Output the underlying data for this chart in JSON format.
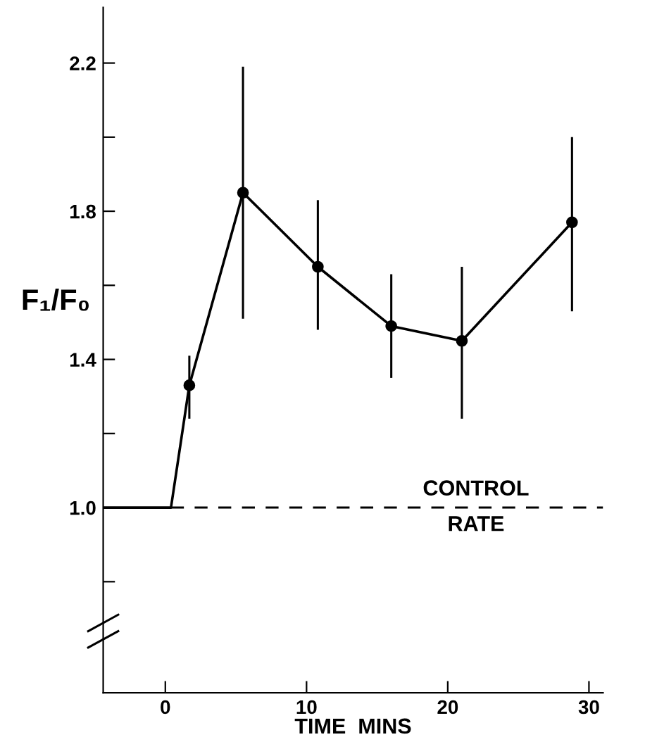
{
  "chart_data": {
    "type": "line",
    "xlabel": "TIME  MINS",
    "ylabel": "F₁/F₀",
    "xlim": [
      -4.4,
      31
    ],
    "ylim": [
      0.5,
      2.35
    ],
    "xticks": [
      0,
      10,
      20,
      30
    ],
    "yticks": [
      {
        "value": 0.8,
        "label": null
      },
      {
        "value": 1.0,
        "label": "1.0"
      },
      {
        "value": 1.2,
        "label": null
      },
      1.4,
      {
        "value": 1.6,
        "label": null
      },
      1.8,
      {
        "value": 2.0,
        "label": null
      },
      2.2
    ],
    "series": [
      {
        "color": "#000000",
        "marker": "none",
        "x": [
          -4.4,
          0.4,
          1.7
        ],
        "values": [
          1.0,
          1.0,
          1.33
        ]
      },
      {
        "color": "#000000",
        "marker": "circle",
        "x": [
          1.7,
          5.5,
          10.8,
          16,
          21,
          28.8
        ],
        "values": [
          1.33,
          1.85,
          1.65,
          1.49,
          1.45,
          1.77
        ],
        "errors": [
          [
            1.24,
            1.41
          ],
          [
            1.51,
            2.19
          ],
          [
            1.48,
            1.83
          ],
          [
            1.35,
            1.63
          ],
          [
            1.24,
            1.65
          ],
          [
            1.53,
            2.0
          ]
        ]
      }
    ],
    "ref_lines": [
      {
        "axis": "y",
        "value": 1.0,
        "label": "CONTROL\nRATE",
        "line_style": "dashed",
        "color": "#000000"
      }
    ],
    "grid": false
  }
}
